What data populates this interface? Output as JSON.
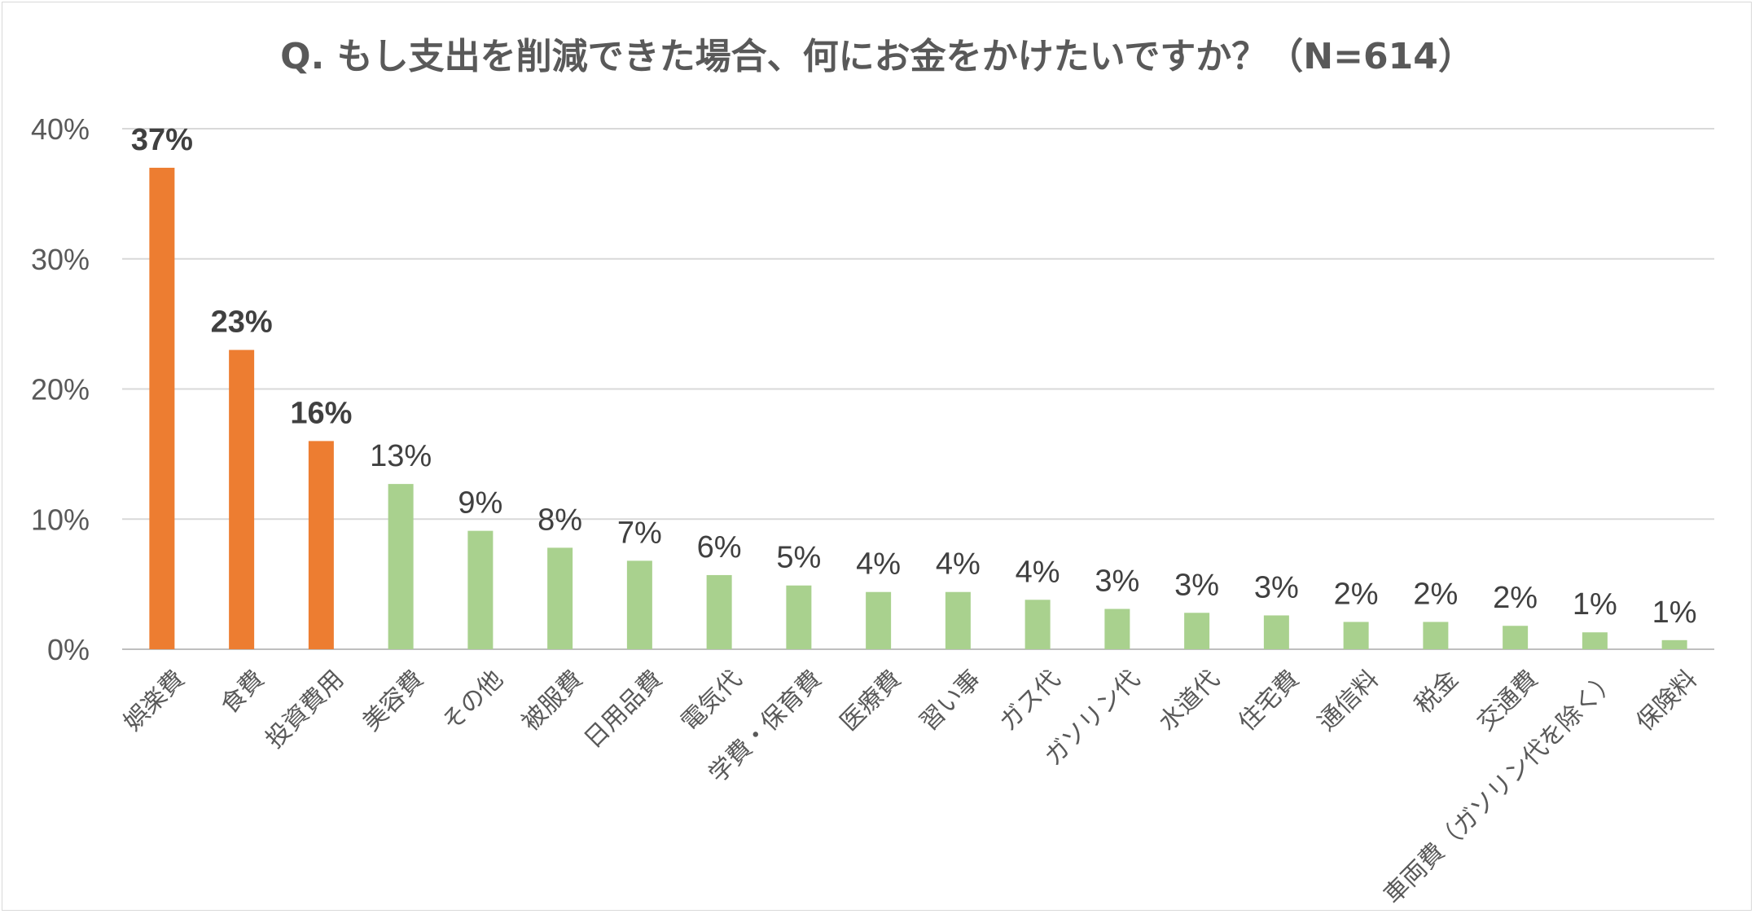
{
  "chart_data": {
    "type": "bar",
    "title": "Q. もし支出を削減できた場合、何にお金をかけたいですか？（N=614）",
    "xlabel": "",
    "ylabel": "",
    "ylim": [
      0,
      40
    ],
    "yticks": [
      "0%",
      "10%",
      "20%",
      "30%",
      "40%"
    ],
    "grid": true,
    "categories": [
      "娯楽費",
      "食費",
      "投資費用",
      "美容費",
      "その他",
      "被服費",
      "日用品費",
      "電気代",
      "学費・保育費",
      "医療費",
      "習い事",
      "ガス代",
      "ガソリン代",
      "水道代",
      "住宅費",
      "通信料",
      "税金",
      "交通費",
      "車両費（ガソリン代を除く）",
      "保険料"
    ],
    "values": [
      37,
      23,
      16,
      12.7,
      9.1,
      7.8,
      6.8,
      5.7,
      4.9,
      4.4,
      4.4,
      3.8,
      3.1,
      2.8,
      2.6,
      2.1,
      2.1,
      1.8,
      1.3,
      0.7
    ],
    "value_labels": [
      "37%",
      "23%",
      "16%",
      "13%",
      "9%",
      "8%",
      "7%",
      "6%",
      "5%",
      "4%",
      "4%",
      "4%",
      "3%",
      "3%",
      "3%",
      "2%",
      "2%",
      "2%",
      "1%",
      "1%"
    ],
    "highlight_count": 3,
    "colors": {
      "highlight": "#ED7D31",
      "normal": "#A9D18E",
      "grid": "#D9D9D9",
      "text": "#595959",
      "label_text": "#404040"
    }
  }
}
